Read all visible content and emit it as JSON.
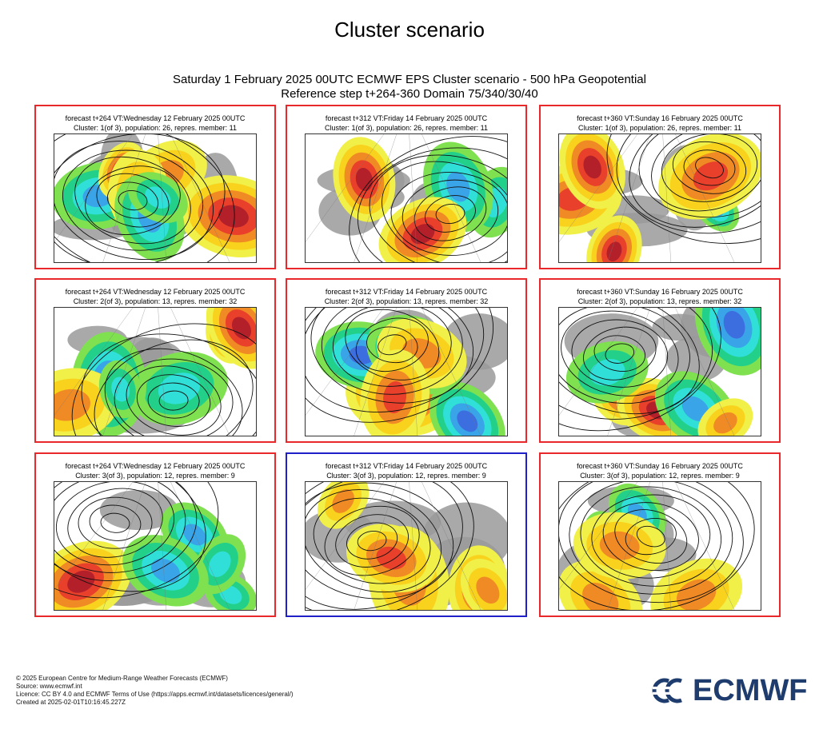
{
  "page": {
    "title": "Cluster scenario",
    "subtitle_line1": "Saturday 1 February 2025 00UTC ECMWF EPS Cluster scenario - 500 hPa Geopotential",
    "subtitle_line2": "Reference step t+264-360 Domain 75/340/30/40"
  },
  "colors": {
    "panel_border": "#e8282a",
    "selected_border": "#2020c8",
    "logo": "#1f3c6e"
  },
  "panels": [
    {
      "line1": "forecast t+264 VT:Wednesday 12 February 2025 00UTC",
      "line2": "Cluster: 1(of 3), population: 26, repres. member: 11",
      "selected": false
    },
    {
      "line1": "forecast t+312 VT:Friday 14 February 2025 00UTC",
      "line2": "Cluster: 1(of 3), population: 26, repres. member: 11",
      "selected": false
    },
    {
      "line1": "forecast t+360 VT:Sunday 16 February 2025 00UTC",
      "line2": "Cluster: 1(of 3), population: 26, repres. member: 11",
      "selected": false
    },
    {
      "line1": "forecast t+264 VT:Wednesday 12 February 2025 00UTC",
      "line2": "Cluster: 2(of 3), population: 13, repres. member: 32",
      "selected": false
    },
    {
      "line1": "forecast t+312 VT:Friday 14 February 2025 00UTC",
      "line2": "Cluster: 2(of 3), population: 13, repres. member: 32",
      "selected": false
    },
    {
      "line1": "forecast t+360 VT:Sunday 16 February 2025 00UTC",
      "line2": "Cluster: 2(of 3), population: 13, repres. member: 32",
      "selected": false
    },
    {
      "line1": "forecast t+264 VT:Wednesday 12 February 2025 00UTC",
      "line2": "Cluster: 3(of 3), population: 12, repres. member: 9",
      "selected": false
    },
    {
      "line1": "forecast t+312 VT:Friday 14 February 2025 00UTC",
      "line2": "Cluster: 3(of 3), population: 12, repres. member: 9",
      "selected": true
    },
    {
      "line1": "forecast t+360 VT:Sunday 16 February 2025 00UTC",
      "line2": "Cluster: 3(of 3), population: 12, repres. member: 9",
      "selected": false
    }
  ],
  "footer": {
    "copyright": "© 2025 European Centre for Medium-Range Weather Forecasts (ECMWF)",
    "source": "Source: www.ecmwf.int",
    "licence": "Licence: CC BY 4.0 and ECMWF Terms of Use (https://apps.ecmwf.int/datasets/licences/general/)",
    "created": "Created at 2025-02-01T10:16:45.227Z"
  },
  "logo": {
    "text": "ECMWF",
    "icon": "ecmwf-logo-icon"
  }
}
